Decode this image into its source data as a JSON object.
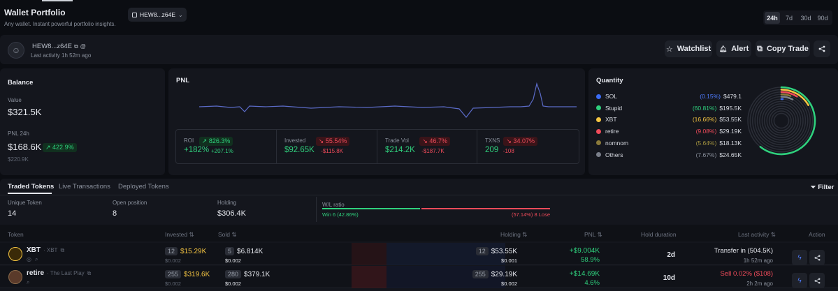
{
  "header": {
    "title": "Wallet Portfolio",
    "subtitle": "Any wallet. Instant powerful portfolio insights.",
    "wallet_select": "HEW8...z64E",
    "timeframes": [
      "24h",
      "7d",
      "30d",
      "90d"
    ],
    "active_timeframe": "24h"
  },
  "profile": {
    "address": "HEW8...z64E",
    "last_activity": "Last activity 1h 52m ago",
    "watchlist_label": "Watchlist",
    "alert_label": "Alert",
    "copy_trade_label": "Copy Trade"
  },
  "balance": {
    "title": "Balance",
    "value_label": "Value",
    "value": "$321.5K",
    "pnl_label": "PNL 24h",
    "pnl_value": "$168.6K",
    "pnl_pct": "422.9%",
    "sub_value": "$220.9K"
  },
  "pnl": {
    "title": "PNL",
    "stats": [
      {
        "label": "ROI",
        "badge": "826.3%",
        "badge_dir": "up",
        "value": "+182%",
        "delta": "+207.1%",
        "value_color": "green",
        "delta_color": "green"
      },
      {
        "label": "Invested",
        "badge": "55.54%",
        "badge_dir": "down",
        "value": "$92.65K",
        "delta": "-$115.8K",
        "value_color": "green",
        "delta_color": "red"
      },
      {
        "label": "Trade Vol",
        "badge": "46.7%",
        "badge_dir": "down",
        "value": "$214.2K",
        "delta": "-$187.7K",
        "value_color": "green",
        "delta_color": "red"
      },
      {
        "label": "TXNS",
        "badge": "34.07%",
        "badge_dir": "down",
        "value": "209",
        "delta": "-108",
        "value_color": "green",
        "delta_color": "red"
      }
    ]
  },
  "quantity": {
    "title": "Quantity",
    "items": [
      {
        "name": "SOL",
        "pct": "(0.15%)",
        "value": "$479.1",
        "color": "#3b6cf6",
        "pct_color": "#4f7cff"
      },
      {
        "name": "Stupid",
        "pct": "(60.81%)",
        "value": "$195.5K",
        "color": "#2fd07d",
        "pct_color": "#2fd07d"
      },
      {
        "name": "XBT",
        "pct": "(16.66%)",
        "value": "$53.55K",
        "color": "#f5c542",
        "pct_color": "#f5c542"
      },
      {
        "name": "retire",
        "pct": "(9.08%)",
        "value": "$29.19K",
        "color": "#f04b5a",
        "pct_color": "#f04b5a"
      },
      {
        "name": "nomnom",
        "pct": "(5.64%)",
        "value": "$18.13K",
        "color": "#8a7a3a",
        "pct_color": "#a0913f"
      },
      {
        "name": "Others",
        "pct": "(7.67%)",
        "value": "$24.65K",
        "color": "#7a7f8a",
        "pct_color": "#8a909c"
      }
    ],
    "donut_fractions": [
      0.0015,
      0.6081,
      0.1666,
      0.0908,
      0.0564,
      0.0767
    ]
  },
  "tabs": {
    "items": [
      "Traded Tokens",
      "Live Transactions",
      "Deployed Tokens"
    ],
    "active": "Traded Tokens",
    "filter_label": "Filter"
  },
  "summary": {
    "unique_label": "Unique Token",
    "unique_value": "14",
    "open_label": "Open position",
    "open_value": "8",
    "holding_label": "Holding",
    "holding_value": "$306.4K",
    "wl_label": "W/L ratio",
    "win_text": "Win 6 (42.86%)",
    "lose_text": "(57.14%) 8 Lose",
    "win_fraction": 0.4286
  },
  "table": {
    "headers": {
      "token": "Token",
      "invested": "Invested",
      "sold": "Sold",
      "holding": "Holding",
      "pnl": "PNL",
      "hold_duration": "Hold duration",
      "last_activity": "Last activity",
      "action": "Action"
    },
    "rows": [
      {
        "symbol": "XBT",
        "name": "XBT",
        "invested_count": "12",
        "invested": "$15.29K",
        "invested_sub": "$0.002",
        "sold_count": "5",
        "sold": "$6.814K",
        "sold_sub": "$0.002",
        "holding_count": "12",
        "holding": "$53.55K",
        "holding_sub": "$0.001",
        "pnl": "+$9.004K",
        "pnl_pct": "58.9%",
        "hold_duration": "2d",
        "last_activity": "Transfer in (504.5K)",
        "last_activity_color": "#e6e8ee",
        "last_time": "1h 52m ago"
      },
      {
        "symbol": "retire",
        "name": "The Last Play",
        "invested_count": "255",
        "invested": "$319.6K",
        "invested_sub": "$0.002",
        "sold_count": "280",
        "sold": "$379.1K",
        "sold_sub": "$0.002",
        "holding_count": "255",
        "holding": "$29.19K",
        "holding_sub": "$0.002",
        "pnl": "+$14.69K",
        "pnl_pct": "4.6%",
        "hold_duration": "10d",
        "last_activity": "Sell 0.02% ($108)",
        "last_activity_color": "#f04b5a",
        "last_time": "2h 2m ago"
      }
    ]
  }
}
